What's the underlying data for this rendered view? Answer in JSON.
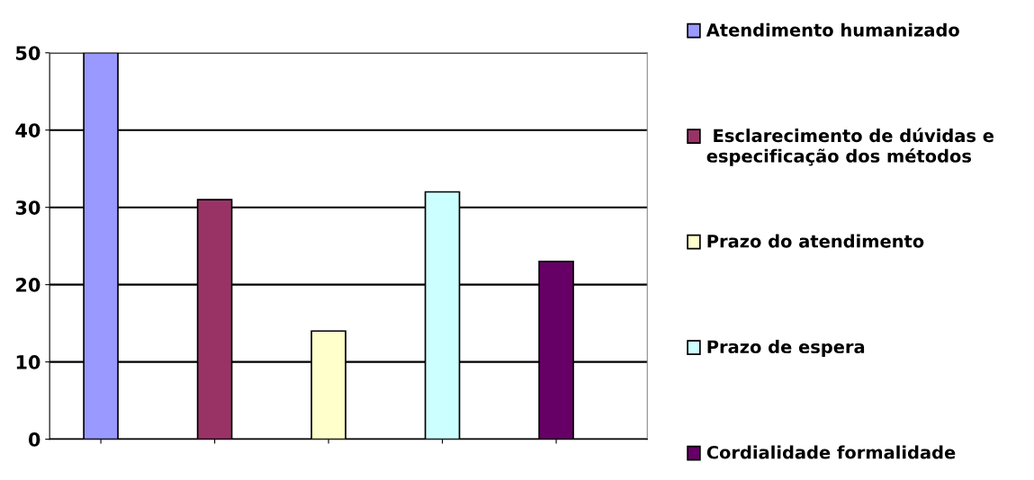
{
  "chart_data": {
    "type": "bar",
    "categories": [
      null,
      null,
      null,
      null,
      null
    ],
    "series": [
      {
        "name": "Atendimento humanizado",
        "color": "#9999ff",
        "values": [
          50,
          null,
          null,
          null,
          null
        ]
      },
      {
        "name": " Esclarecimento de dúvidas e especificação dos métodos",
        "color": "#993366",
        "values": [
          null,
          31,
          null,
          null,
          null
        ]
      },
      {
        "name": "Prazo do atendimento",
        "color": "#ffffcc",
        "values": [
          null,
          null,
          14,
          null,
          null
        ]
      },
      {
        "name": "Prazo de espera",
        "color": "#ccffff",
        "values": [
          null,
          null,
          null,
          32,
          null
        ]
      },
      {
        "name": "Cordialidade formalidade",
        "color": "#660066",
        "values": [
          null,
          null,
          null,
          null,
          23
        ]
      }
    ],
    "ylim": [
      0,
      50
    ],
    "yticks": [
      0,
      10,
      20,
      30,
      40,
      50
    ],
    "grid": "y",
    "legend": "right"
  }
}
